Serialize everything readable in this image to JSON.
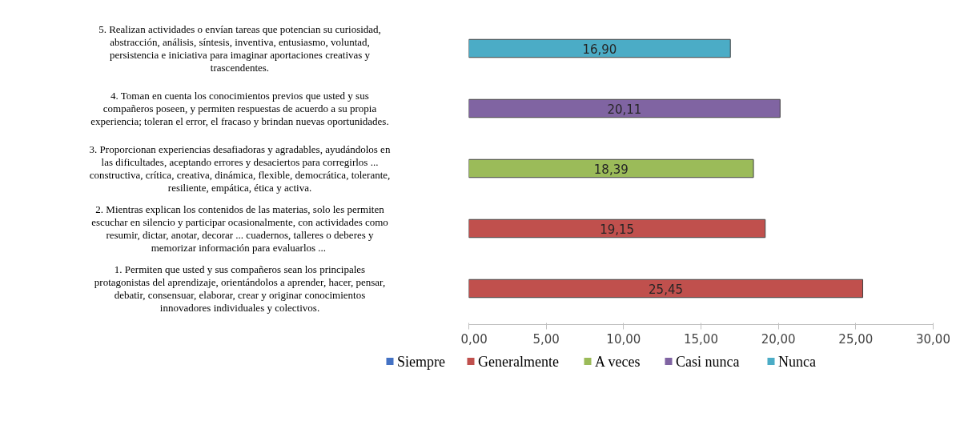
{
  "chart_data": {
    "type": "bar",
    "orientation": "horizontal",
    "categories": [
      "5. Realizan actividades o envían tareas que potencian su curiosidad,\nabstracción, análisis, síntesis, inventiva, entusiasmo, voluntad,\npersistencia e iniciativa para imaginar aportaciones creativas y\ntrascendentes.",
      "4. Toman en cuenta los conocimientos previos que usted y sus\ncompañeros poseen, y permiten respuestas de acuerdo a su propia\nexperiencia; toleran el error, el fracaso y brindan nuevas oportunidades.",
      "3. Proporcionan experiencias desafiadoras y agradables, ayudándolos en\nlas dificultades, aceptando errores y desaciertos para corregirlos ...\nconstructiva, crítica, creativa, dinámica, flexible, democrática, tolerante,\nresiliente, empática, ética y activa.",
      "2. Mientras explican los contenidos de las materias, solo les permiten\nescuchar en silencio y participar ocasionalmente, con actividades como\nresumir, dictar, anotar, decorar ... cuadernos, talleres o deberes y\nmemorizar  información para evaluarlos ...",
      "1. Permiten que usted y sus compañeros sean los principales\nprotagonistas del aprendizaje, orientándolos a aprender, hacer, pensar,\ndebatir, consensuar, elaborar, crear y originar conocimientos\ninnovadores individuales y colectivos."
    ],
    "series": [
      {
        "name": "Siempre",
        "color": "#4472c4",
        "values": [
          null,
          null,
          null,
          null,
          null
        ]
      },
      {
        "name": "Generalmente",
        "color": "#c0504d",
        "values": [
          null,
          null,
          null,
          19.15,
          25.45
        ],
        "value_labels": [
          null,
          null,
          null,
          "19,15",
          "25,45"
        ]
      },
      {
        "name": "A veces",
        "color": "#9bbb59",
        "values": [
          null,
          null,
          18.39,
          null,
          null
        ],
        "value_labels": [
          null,
          null,
          "18,39",
          null,
          null
        ]
      },
      {
        "name": "Casi nunca",
        "color": "#8064a2",
        "values": [
          null,
          20.11,
          null,
          null,
          null
        ],
        "value_labels": [
          null,
          "20,11",
          null,
          null,
          null
        ]
      },
      {
        "name": "Nunca",
        "color": "#4bacc6",
        "values": [
          16.9,
          null,
          null,
          null,
          null
        ],
        "value_labels": [
          "16,90",
          null,
          null,
          null,
          null
        ]
      }
    ],
    "xlim": [
      0,
      30
    ],
    "xticks": [
      {
        "value": 0,
        "label": "0,00"
      },
      {
        "value": 5,
        "label": "5,00"
      },
      {
        "value": 10,
        "label": "10,00"
      },
      {
        "value": 15,
        "label": "15,00"
      },
      {
        "value": 20,
        "label": "20,00"
      },
      {
        "value": 25,
        "label": "25,00"
      },
      {
        "value": 30,
        "label": "30,00"
      }
    ],
    "grid": false,
    "legend": "bottom"
  }
}
